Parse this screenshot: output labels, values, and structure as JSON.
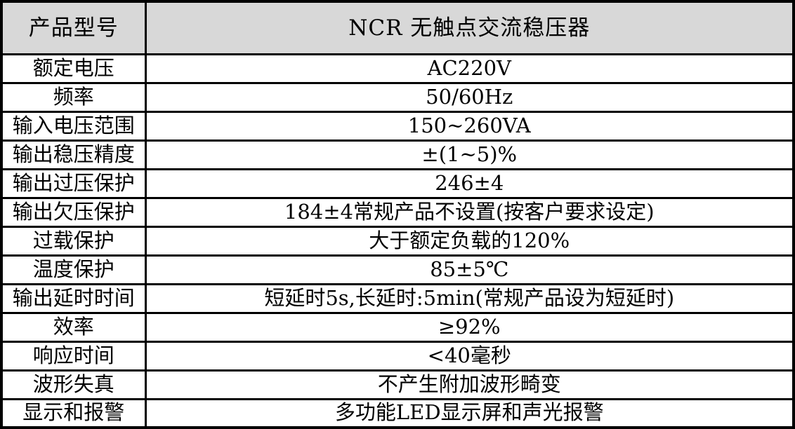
{
  "colors": {
    "header_bg": "#d8d8d8",
    "row_bg": "#ffffff",
    "border": "#000000"
  },
  "table": {
    "header": {
      "label": "产品型号",
      "value": "NCR 无触点交流稳压器"
    },
    "rows": [
      {
        "label": "额定电压",
        "value": "AC220V"
      },
      {
        "label": "频率",
        "value": "50/60Hz"
      },
      {
        "label": "输入电压范围",
        "value": "150~260VA"
      },
      {
        "label": "输出稳压精度",
        "value": "±(1~5)%"
      },
      {
        "label": "输出过压保护",
        "value": "246±4"
      },
      {
        "label": "输出欠压保护",
        "value": "184±4常规产品不设置(按客户要求设定)"
      },
      {
        "label": "过载保护",
        "value": "大于额定负载的120%"
      },
      {
        "label": "温度保护",
        "value": "85±5℃"
      },
      {
        "label": "输出延时时间",
        "value": "短延时5s,长延时:5min(常规产品设为短延时)"
      },
      {
        "label": "效率",
        "value": "≥92%"
      },
      {
        "label": "响应时间",
        "value": "<40毫秒"
      },
      {
        "label": "波形失真",
        "value": "不产生附加波形畸变"
      },
      {
        "label": "显示和报警",
        "value": "多功能LED显示屏和声光报警"
      }
    ]
  }
}
